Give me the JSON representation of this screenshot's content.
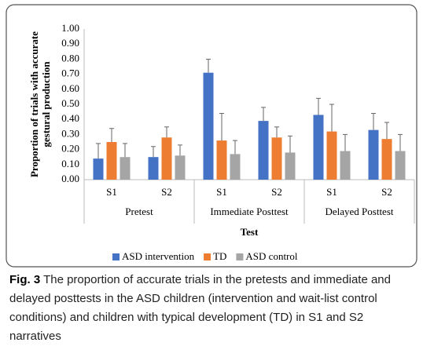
{
  "chart_data": {
    "type": "bar",
    "y_label": "Proportion of trials with accurate gestural production",
    "x_label": "Test",
    "groups": [
      "Pretest",
      "Immediate Posttest",
      "Delayed Posttest"
    ],
    "categories": [
      "S1",
      "S2",
      "S1",
      "S2",
      "S1",
      "S2"
    ],
    "series": [
      {
        "name": "ASD intervention",
        "color": "#4472c4",
        "values": [
          0.14,
          0.15,
          0.71,
          0.39,
          0.43,
          0.33
        ],
        "errors": [
          0.1,
          0.07,
          0.09,
          0.09,
          0.11,
          0.11
        ]
      },
      {
        "name": "TD",
        "color": "#ed7d31",
        "values": [
          0.25,
          0.28,
          0.26,
          0.28,
          0.32,
          0.27
        ],
        "errors": [
          0.09,
          0.07,
          0.18,
          0.07,
          0.18,
          0.11
        ]
      },
      {
        "name": "ASD control",
        "color": "#a5a5a5",
        "values": [
          0.15,
          0.16,
          0.17,
          0.18,
          0.19,
          0.19
        ],
        "errors": [
          0.09,
          0.07,
          0.09,
          0.11,
          0.11,
          0.11
        ]
      }
    ],
    "ylim": [
      0,
      1
    ],
    "yticks": [
      {
        "value": 0,
        "label": "0.00"
      },
      {
        "value": 0.1,
        "label": "0.10"
      },
      {
        "value": 0.2,
        "label": "0.20"
      },
      {
        "value": 0.3,
        "label": "0.30"
      },
      {
        "value": 0.4,
        "label": "0.40"
      },
      {
        "value": 0.5,
        "label": "0.50"
      },
      {
        "value": 0.6,
        "label": "0.60"
      },
      {
        "value": 0.7,
        "label": "0.70"
      },
      {
        "value": 0.8,
        "label": "0.80"
      },
      {
        "value": 0.9,
        "label": "0.90"
      },
      {
        "value": 1,
        "label": "1.00"
      }
    ],
    "grid": false,
    "legend": "bottom"
  },
  "caption": {
    "label": "Fig. 3",
    "text": "The proportion of accurate trials in the pretests and immediate and delayed posttests in the ASD children (intervention and wait-list control conditions) and children with typical development (TD) in S1 and S2 narratives"
  }
}
